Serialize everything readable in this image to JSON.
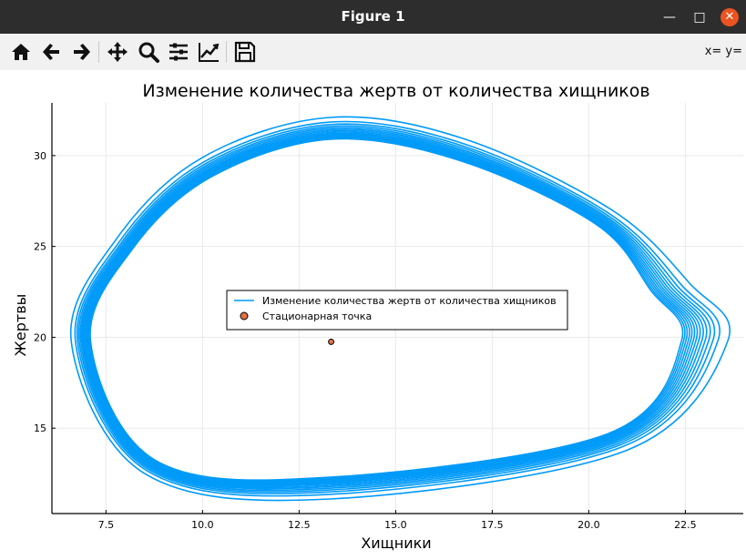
{
  "window": {
    "title": "Figure 1",
    "minimize_icon": "minimize-icon",
    "maximize_icon": "maximize-icon",
    "close_icon": "close-icon"
  },
  "toolbar": {
    "tools": [
      "home-icon",
      "back-arrow-icon",
      "forward-arrow-icon",
      "pan-icon",
      "zoom-icon",
      "subplots-icon",
      "edit-curves-icon",
      "save-icon"
    ],
    "coords": "x= y="
  },
  "chart_data": {
    "type": "line",
    "title": "Изменение количества жертв от количества хищников",
    "xlabel": "Хищники",
    "ylabel": "Жертвы",
    "xlim": [
      6.1,
      24.0
    ],
    "ylim": [
      10.3,
      32.9
    ],
    "xticks": [
      "7.5",
      "10.0",
      "12.5",
      "15.0",
      "17.5",
      "20.0",
      "22.5"
    ],
    "yticks": [
      "15",
      "20",
      "25",
      "30"
    ],
    "grid": true,
    "legend_position": "center",
    "colors": {
      "series": "#009af9",
      "point": "#e26f46"
    },
    "series": [
      {
        "name": "Изменение количества жертв от количества хищников",
        "kind": "closed-orbit",
        "x": [
          13.3,
          16.8,
          20.6,
          22.6,
          23.6,
          21.0,
          13.3,
          8.5,
          6.6,
          7.8,
          10.0,
          13.3
        ],
        "y": [
          32.1,
          30.9,
          27.0,
          23.0,
          19.8,
          13.8,
          11.1,
          12.5,
          19.8,
          25.5,
          29.9,
          32.1
        ],
        "inner_x": [
          13.3,
          16.7,
          20.2,
          21.6,
          22.4,
          20.5,
          13.3,
          8.8,
          7.1,
          8.2,
          10.2,
          13.3
        ],
        "inner_y": [
          30.9,
          29.7,
          26.2,
          22.6,
          19.8,
          14.7,
          12.3,
          13.2,
          19.8,
          24.9,
          28.8,
          30.9
        ],
        "loops": 14
      },
      {
        "name": "Стационарная точка",
        "kind": "scatter",
        "x": [
          13.33
        ],
        "y": [
          19.75
        ]
      }
    ]
  }
}
